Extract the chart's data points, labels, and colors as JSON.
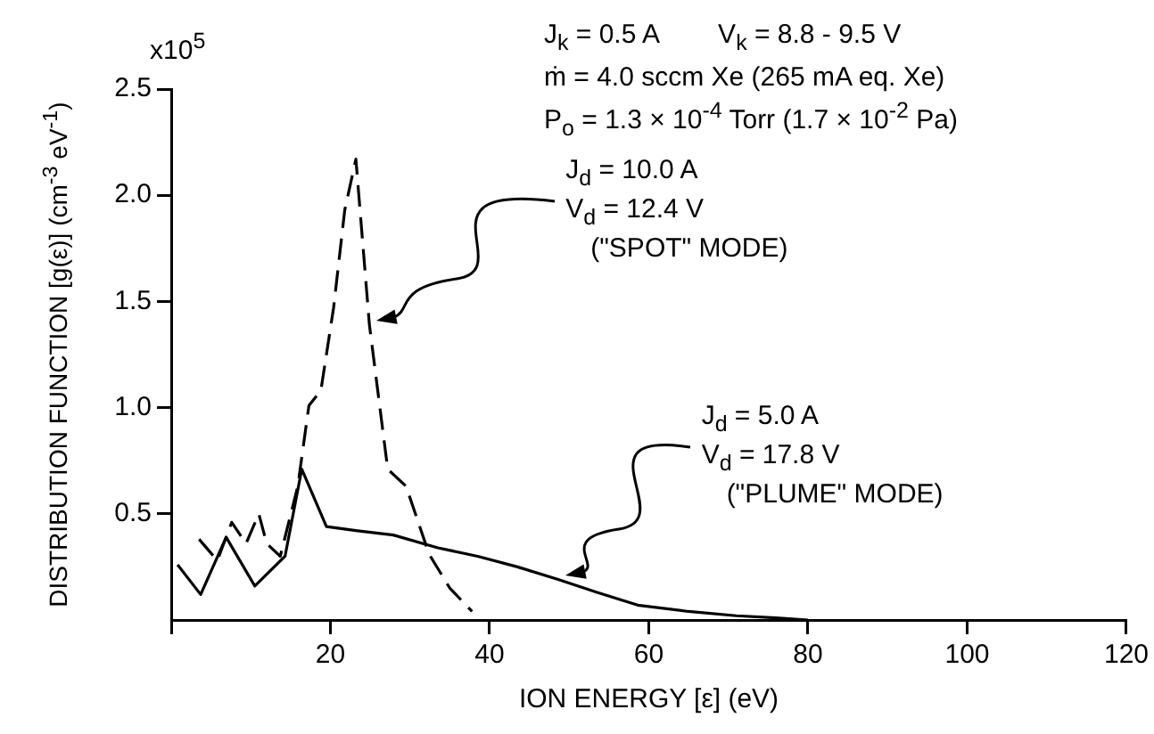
{
  "chart_data": {
    "type": "line",
    "xlabel": "ION ENERGY [ε] (eV)",
    "ylabel": "DISTRIBUTION FUNCTION [g(ε)] (cm$^{-3}$ eV$^{-1}$)",
    "annotations": [
      "x10$^{5}$",
      "J$_{k}$ = 0.5 A        V$_{k}$ = 8.8 - 9.5 V",
      "ṁ = 4.0 sccm Xe (265 mA eq. Xe)",
      "P$_{o}$ = 1.3 × 10$^{-4}$ Torr (1.7 × 10$^{-2}$ Pa)"
    ],
    "xlim": [
      0,
      120
    ],
    "xticks": [
      {
        "value": 0,
        "label": null
      },
      20,
      40,
      60,
      80,
      100,
      120
    ],
    "ylim": [
      0,
      2.5
    ],
    "yticks": [
      {
        "value": 0.5,
        "label": "0.5"
      },
      {
        "value": 1,
        "label": "1.0"
      },
      {
        "value": 1.5,
        "label": "1.5"
      },
      {
        "value": 2,
        "label": "2.0"
      },
      {
        "value": 2.5,
        "label": "2.5"
      }
    ],
    "grid": false,
    "legend": false,
    "marker": "none",
    "series": [
      {
        "name": "J$_{d}$ = 10.0 A\nV$_{d}$ = 12.4 V\n(\"SPOT\" MODE)",
        "color": "#000000",
        "line_style": "dashed",
        "x": [
          3.5,
          5.8,
          7.6,
          9.4,
          11,
          12,
          13.7,
          15.9,
          17.3,
          18.8,
          20.4,
          21.8,
          23.2,
          24.9,
          27.2,
          29.5,
          32.4,
          35,
          37.8
        ],
        "values": [
          0.38,
          0.28,
          0.46,
          0.36,
          0.5,
          0.36,
          0.3,
          0.63,
          1.01,
          1.08,
          1.47,
          1.93,
          2.17,
          1.39,
          0.71,
          0.63,
          0.31,
          0.15,
          0.04
        ]
      },
      {
        "name": "J$_{d}$ = 5.0 A\nV$_{d}$ = 17.8 V\n(\"PLUME\" MODE)",
        "color": "#000000",
        "line_style": "solid",
        "x": [
          0.8,
          3.7,
          6.9,
          10.5,
          14.3,
          16.4,
          19.5,
          23.4,
          27.9,
          33.5,
          38.5,
          43.5,
          48.7,
          53.5,
          58.6,
          65,
          71,
          76,
          80
        ],
        "values": [
          0.26,
          0.12,
          0.39,
          0.16,
          0.3,
          0.71,
          0.44,
          0.42,
          0.4,
          0.34,
          0.3,
          0.25,
          0.19,
          0.13,
          0.07,
          0.04,
          0.02,
          0.01,
          0
        ]
      }
    ]
  }
}
